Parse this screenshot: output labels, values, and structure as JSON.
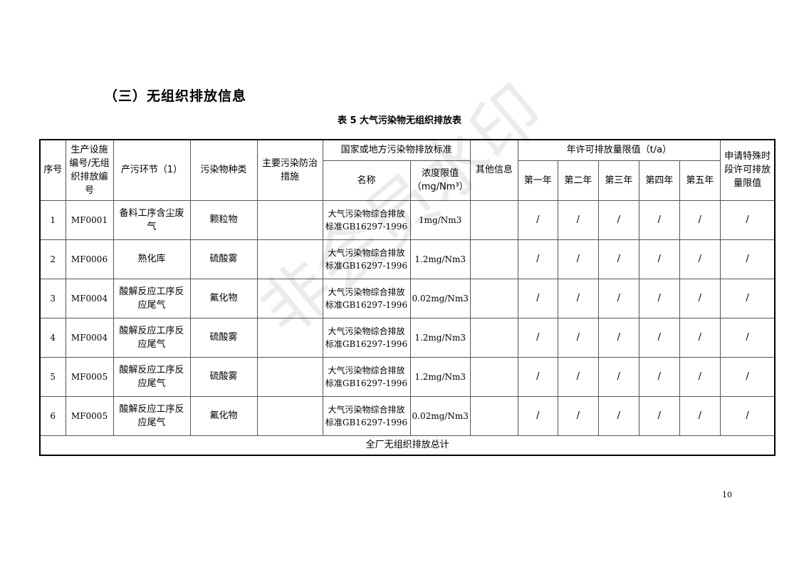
{
  "section_title": "（三）无组织排放信息",
  "table_caption": "表 5 大气污染物无组织排放表",
  "headers": {
    "seq": "序号",
    "facility": "生产设施编号/无组织排放编号",
    "process": "产污环节（1）",
    "pollutant": "污染物种类",
    "measures": "主要污染防治措施",
    "standard_group": "国家或地方污染物排放标准",
    "standard_name": "名称",
    "concentration": "浓度限值（mg/Nm³）",
    "other": "其他信息",
    "annual_group": "年许可排放量限值（t/a）",
    "years": [
      "第一年",
      "第二年",
      "第三年",
      "第四年",
      "第五年"
    ],
    "special": "申请特殊时段许可排放量限值"
  },
  "rows": [
    {
      "seq": "1",
      "facility": "MF0001",
      "process": "备料工序含尘废气",
      "pollutant": "颗粒物",
      "measures": "",
      "standard": "大气污染物综合排放标准GB16297-1996",
      "concentration": "1mg/Nm3",
      "other": "",
      "years": [
        "/",
        "/",
        "/",
        "/",
        "/"
      ],
      "special": "/"
    },
    {
      "seq": "2",
      "facility": "MF0006",
      "process": "熟化库",
      "pollutant": "硫酸雾",
      "measures": "",
      "standard": "大气污染物综合排放标准GB16297-1996",
      "concentration": "1.2mg/Nm3",
      "other": "",
      "years": [
        "/",
        "/",
        "/",
        "/",
        "/"
      ],
      "special": "/"
    },
    {
      "seq": "3",
      "facility": "MF0004",
      "process": "酸解反应工序反应尾气",
      "pollutant": "氟化物",
      "measures": "",
      "standard": "大气污染物综合排放标准GB16297-1996",
      "concentration": "0.02mg/Nm3",
      "other": "",
      "years": [
        "/",
        "/",
        "/",
        "/",
        "/"
      ],
      "special": "/"
    },
    {
      "seq": "4",
      "facility": "MF0004",
      "process": "酸解反应工序反应尾气",
      "pollutant": "硫酸雾",
      "measures": "",
      "standard": "大气污染物综合排放标准GB16297-1996",
      "concentration": "1.2mg/Nm3",
      "other": "",
      "years": [
        "/",
        "/",
        "/",
        "/",
        "/"
      ],
      "special": "/"
    },
    {
      "seq": "5",
      "facility": "MF0005",
      "process": "酸解反应工序反应尾气",
      "pollutant": "硫酸雾",
      "measures": "",
      "standard": "大气污染物综合排放标准GB16297-1996",
      "concentration": "1.2mg/Nm3",
      "other": "",
      "years": [
        "/",
        "/",
        "/",
        "/",
        "/"
      ],
      "special": "/"
    },
    {
      "seq": "6",
      "facility": "MF0005",
      "process": "酸解反应工序反应尾气",
      "pollutant": "氟化物",
      "measures": "",
      "standard": "大气污染物综合排放标准GB16297-1996",
      "concentration": "0.02mg/Nm3",
      "other": "",
      "years": [
        "/",
        "/",
        "/",
        "/",
        "/"
      ],
      "special": "/"
    }
  ],
  "total_label": "全厂无组织排放总计",
  "watermark": "非会员水印",
  "page_number": "10"
}
